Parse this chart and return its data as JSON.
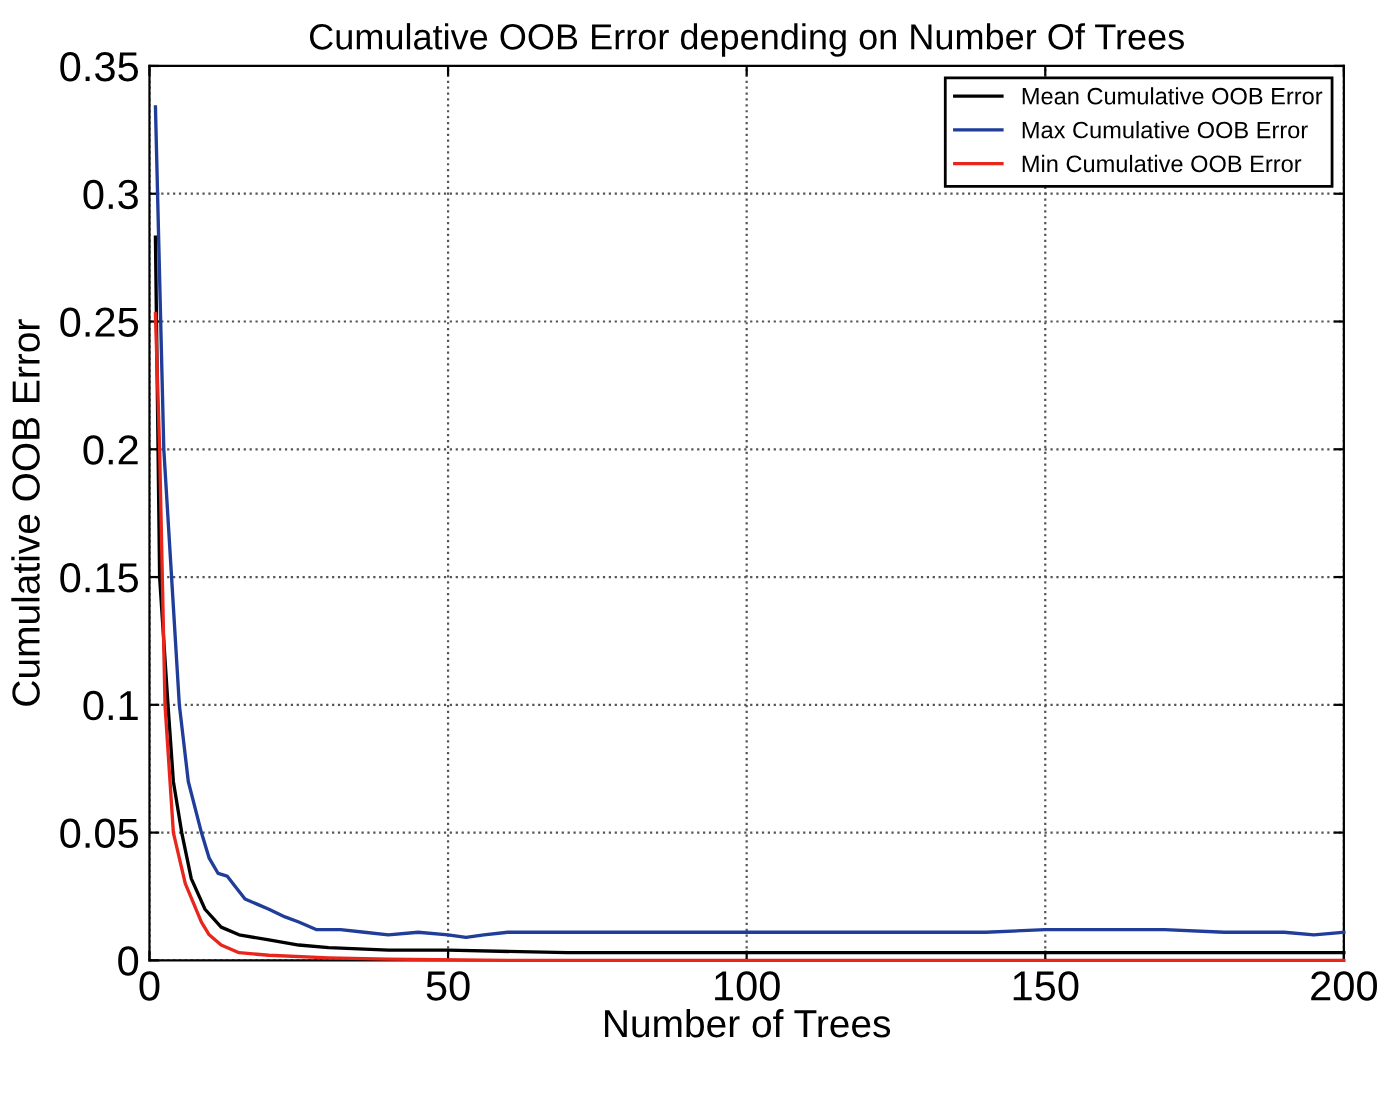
{
  "chart_data": {
    "type": "line",
    "title": "Cumulative OOB Error depending on Number Of Trees",
    "xlabel": "Number of Trees",
    "ylabel": "Cumulative OOB Error",
    "xlim": [
      0,
      200
    ],
    "ylim": [
      0,
      0.35
    ],
    "xticks": [
      0,
      50,
      100,
      150,
      200
    ],
    "yticks": [
      0,
      0.05,
      0.1,
      0.15,
      0.2,
      0.25,
      0.3,
      0.35
    ],
    "grid": true,
    "legend": "top right",
    "line_style": "solid",
    "series": [
      {
        "name": "Mean Cumulative OOB Error",
        "color": "#000000",
        "x": [
          1,
          1.7,
          3.1,
          4,
          5.4,
          7,
          9.3,
          12,
          15,
          20,
          25,
          30,
          40,
          50,
          70,
          100,
          150,
          200
        ],
        "values": [
          0.283,
          0.15,
          0.1,
          0.07,
          0.05,
          0.032,
          0.02,
          0.013,
          0.01,
          0.008,
          0.006,
          0.005,
          0.004,
          0.004,
          0.003,
          0.003,
          0.003,
          0.003
        ]
      },
      {
        "name": "Max Cumulative OOB Error",
        "color": "#1f3d99",
        "x": [
          1,
          2.4,
          5,
          6.5,
          8.7,
          10,
          11.5,
          13,
          14,
          16,
          18,
          20,
          22.7,
          25,
          28,
          32,
          36,
          40,
          45,
          50,
          53,
          56,
          60,
          70,
          80,
          90,
          100,
          110,
          120,
          130,
          140,
          150,
          160,
          170,
          180,
          190,
          195,
          200
        ],
        "values": [
          0.334,
          0.2,
          0.1,
          0.07,
          0.05,
          0.04,
          0.034,
          0.033,
          0.03,
          0.024,
          0.022,
          0.02,
          0.017,
          0.015,
          0.012,
          0.012,
          0.011,
          0.01,
          0.011,
          0.01,
          0.009,
          0.01,
          0.011,
          0.011,
          0.011,
          0.011,
          0.011,
          0.011,
          0.011,
          0.011,
          0.011,
          0.012,
          0.012,
          0.012,
          0.011,
          0.011,
          0.01,
          0.011
        ]
      },
      {
        "name": "Min Cumulative OOB Error",
        "color": "#e8261c",
        "x": [
          1,
          1.7,
          2.6,
          4,
          6,
          8.7,
          10,
          12,
          15,
          20,
          30,
          40,
          60,
          100,
          150,
          200
        ],
        "values": [
          0.253,
          0.2,
          0.1,
          0.05,
          0.03,
          0.015,
          0.01,
          0.006,
          0.003,
          0.002,
          0.001,
          0.0005,
          0,
          0,
          0,
          0
        ]
      }
    ]
  }
}
